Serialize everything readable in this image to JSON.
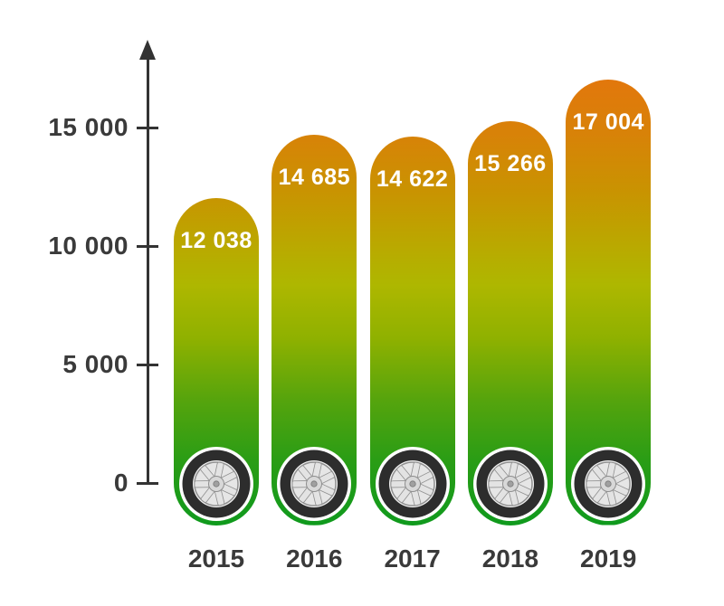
{
  "chart_data": {
    "type": "bar",
    "title": "",
    "xlabel": "",
    "ylabel": "",
    "categories": [
      "2015",
      "2016",
      "2017",
      "2018",
      "2019"
    ],
    "values": [
      12038,
      14685,
      14622,
      15266,
      17004
    ],
    "value_labels": [
      "12 038",
      "14 685",
      "14 622",
      "15 266",
      "17 004"
    ],
    "yticks": [
      0,
      5000,
      10000,
      15000
    ],
    "ytick_labels": [
      "0",
      "5 000",
      "10 000",
      "15 000"
    ],
    "ylim": [
      0,
      17500
    ],
    "grid": false,
    "legend": null,
    "bar_shape": "capsule-with-wheel-icon",
    "bar_gradient": [
      {
        "pos": "0%",
        "color": "#e2770c"
      },
      {
        "pos": "12%",
        "color": "#d88208"
      },
      {
        "pos": "25%",
        "color": "#c99301"
      },
      {
        "pos": "38%",
        "color": "#b9aa00"
      },
      {
        "pos": "46%",
        "color": "#aeb700"
      },
      {
        "pos": "58%",
        "color": "#8fb100"
      },
      {
        "pos": "72%",
        "color": "#55a40d"
      },
      {
        "pos": "85%",
        "color": "#2b9d15"
      },
      {
        "pos": "100%",
        "color": "#0f9a1d"
      }
    ],
    "colors": {
      "background": "#ffffff",
      "axis": "#333333",
      "tick_label": "#3a3a3a",
      "year_label": "#3a3a3a",
      "value_label": "#ffffff",
      "wheel_tire": "#2d2d2d",
      "wheel_rim": "#e3e3e3"
    }
  }
}
